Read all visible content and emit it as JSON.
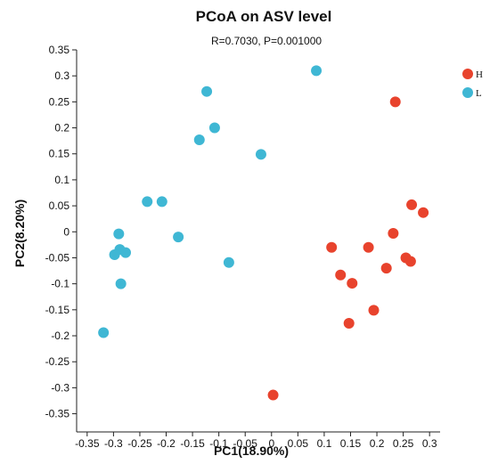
{
  "chart_data": {
    "type": "scatter",
    "title": "PCoA on ASV level",
    "subtitle": "R=0.7030, P=0.001000",
    "xlabel": "PC1(18.90%)",
    "ylabel": "PC2(8.20%)",
    "xlim": [
      -0.37,
      0.32
    ],
    "ylim": [
      -0.385,
      0.35
    ],
    "x_ticks": [
      -0.35,
      -0.3,
      -0.25,
      -0.2,
      -0.15,
      -0.1,
      -0.05,
      0,
      0.05,
      0.1,
      0.15,
      0.2,
      0.25,
      0.3
    ],
    "x_tick_labels": [
      "-0.35",
      "-0.3",
      "-0.25",
      "-0.2",
      "-0.15",
      "-0.1",
      "-0.05",
      "0",
      "0.05",
      "0.1",
      "0.15",
      "0.2",
      "0.25",
      "0.3"
    ],
    "y_ticks": [
      0.35,
      0.3,
      0.25,
      0.2,
      0.15,
      0.1,
      0.05,
      0,
      -0.05,
      -0.1,
      -0.15,
      -0.2,
      -0.25,
      -0.3,
      -0.35
    ],
    "y_tick_labels": [
      "0.35",
      "0.3",
      "0.25",
      "0.2",
      "0.15",
      "0.1",
      "0.05",
      "0",
      "-0.05",
      "-0.1",
      "-0.15",
      "-0.2",
      "-0.25",
      "-0.3",
      "-0.35"
    ],
    "grid": false,
    "legend_position": "top-right",
    "series": [
      {
        "name": "H",
        "color": "#e8432d",
        "points": [
          [
            0.235,
            0.25
          ],
          [
            0.266,
            0.052
          ],
          [
            0.288,
            0.037
          ],
          [
            0.231,
            -0.003
          ],
          [
            0.114,
            -0.03
          ],
          [
            0.184,
            -0.03
          ],
          [
            0.255,
            -0.05
          ],
          [
            0.264,
            -0.057
          ],
          [
            0.218,
            -0.07
          ],
          [
            0.131,
            -0.083
          ],
          [
            0.153,
            -0.099
          ],
          [
            0.194,
            -0.151
          ],
          [
            0.147,
            -0.176
          ],
          [
            0.003,
            -0.314
          ]
        ]
      },
      {
        "name": "L",
        "color": "#3fb7d4",
        "points": [
          [
            0.085,
            0.31
          ],
          [
            -0.123,
            0.27
          ],
          [
            -0.108,
            0.2
          ],
          [
            -0.137,
            0.177
          ],
          [
            -0.02,
            0.149
          ],
          [
            -0.236,
            0.058
          ],
          [
            -0.208,
            0.058
          ],
          [
            -0.29,
            -0.004
          ],
          [
            -0.177,
            -0.01
          ],
          [
            -0.288,
            -0.034
          ],
          [
            -0.277,
            -0.04
          ],
          [
            -0.298,
            -0.044
          ],
          [
            -0.081,
            -0.059
          ],
          [
            -0.286,
            -0.1
          ],
          [
            -0.319,
            -0.194
          ]
        ]
      }
    ]
  }
}
